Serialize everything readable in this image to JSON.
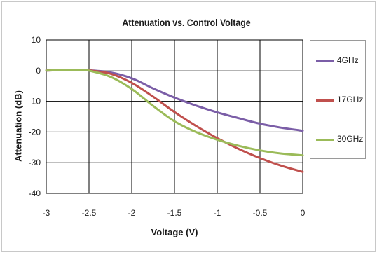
{
  "chart_data": {
    "type": "line",
    "title": "Attenuation vs. Control Voltage",
    "xlabel": "Voltage (V)",
    "ylabel": "Attenuation (dB)",
    "xlim": [
      -3,
      0
    ],
    "ylim": [
      -40,
      10
    ],
    "xticks": [
      -3,
      -2.5,
      -2,
      -1.5,
      -1,
      -0.5,
      0
    ],
    "xtick_labels": [
      "-3",
      "-2.5",
      "-2",
      "-1.5",
      "-1",
      "-0.5",
      "0"
    ],
    "yticks": [
      10,
      0,
      -10,
      -20,
      -30,
      -40
    ],
    "ytick_labels": [
      "10",
      "0",
      "-10",
      "-20",
      "-30",
      "-40"
    ],
    "grid": true,
    "legend_position": "right",
    "series": [
      {
        "name": "4GHz",
        "color": "#7b5ea7",
        "x": [
          -3,
          -2.75,
          -2.6,
          -2.5,
          -2.25,
          -2.0,
          -1.75,
          -1.5,
          -1.25,
          -1.0,
          -0.75,
          -0.5,
          -0.25,
          0
        ],
        "y": [
          0,
          0.2,
          0.2,
          0.1,
          -0.6,
          -2.5,
          -5.8,
          -8.8,
          -11.4,
          -13.6,
          -15.5,
          -17.3,
          -18.6,
          -19.6
        ]
      },
      {
        "name": "17GHz",
        "color": "#c0504d",
        "x": [
          -3,
          -2.75,
          -2.6,
          -2.5,
          -2.25,
          -2.0,
          -1.75,
          -1.5,
          -1.25,
          -1.0,
          -0.75,
          -0.5,
          -0.25,
          0
        ],
        "y": [
          0,
          0.2,
          0.3,
          0.1,
          -1.0,
          -4.0,
          -8.5,
          -13.5,
          -18.0,
          -22.0,
          -25.5,
          -28.5,
          -31.0,
          -33.0
        ]
      },
      {
        "name": "30GHz",
        "color": "#9bbb59",
        "x": [
          -3,
          -2.75,
          -2.6,
          -2.5,
          -2.25,
          -2.0,
          -1.75,
          -1.5,
          -1.25,
          -1.0,
          -0.75,
          -0.5,
          -0.25,
          0
        ],
        "y": [
          0,
          0.2,
          0.3,
          0.0,
          -2.0,
          -6.0,
          -11.5,
          -16.5,
          -20.0,
          -22.5,
          -24.5,
          -26.0,
          -27.0,
          -27.6
        ]
      }
    ]
  }
}
